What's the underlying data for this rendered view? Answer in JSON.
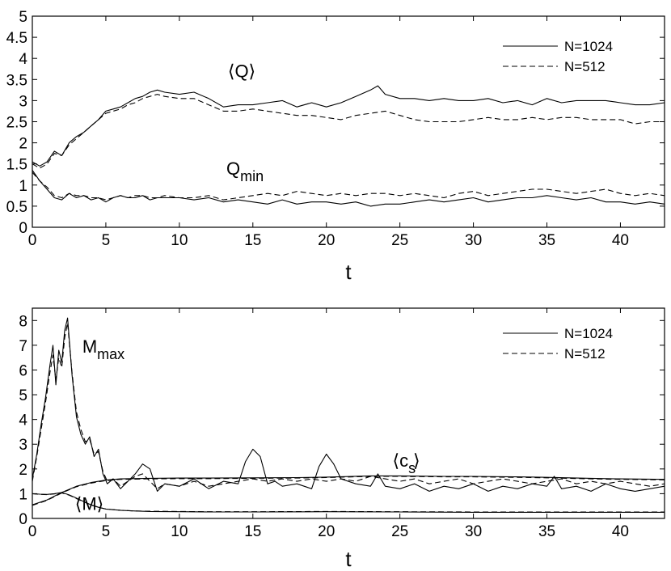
{
  "chart_data": [
    {
      "type": "line",
      "xlabel": "t",
      "ylabel": "",
      "xlim": [
        0,
        43
      ],
      "ylim": [
        0,
        5
      ],
      "xticks": [
        0,
        5,
        10,
        15,
        20,
        25,
        30,
        35,
        40
      ],
      "yticks": [
        0,
        0.5,
        1,
        1.5,
        2,
        2.5,
        3,
        3.5,
        4,
        4.5,
        5
      ],
      "legend": {
        "position": "top-right",
        "entries": [
          {
            "label": "N=1024",
            "style": "solid"
          },
          {
            "label": "N=512",
            "style": "dashed"
          }
        ]
      },
      "annotations": [
        {
          "text": "⟨Q⟩",
          "sub": "",
          "x": 13.3,
          "y": 3.55
        },
        {
          "text": "Q",
          "sub": "min",
          "x": 13.2,
          "y": 1.25
        }
      ],
      "series": [
        {
          "name": "⟨Q⟩",
          "group": "N=1024",
          "style": "solid",
          "x": [
            0,
            0.5,
            1,
            1.5,
            2,
            2.5,
            3,
            3.5,
            4,
            4.5,
            5,
            5.5,
            6,
            6.5,
            7,
            7.5,
            8,
            8.5,
            9,
            10,
            11,
            12,
            13,
            14,
            15,
            16,
            17,
            18,
            19,
            20,
            21,
            22,
            23,
            23.5,
            24,
            25,
            26,
            27,
            28,
            29,
            30,
            31,
            32,
            33,
            34,
            35,
            36,
            37,
            38,
            39,
            40,
            41,
            42,
            43
          ],
          "y": [
            1.55,
            1.45,
            1.55,
            1.8,
            1.7,
            2.0,
            2.15,
            2.25,
            2.4,
            2.55,
            2.75,
            2.8,
            2.85,
            2.95,
            3.05,
            3.1,
            3.2,
            3.25,
            3.2,
            3.15,
            3.2,
            3.05,
            2.85,
            2.9,
            2.9,
            2.95,
            3.0,
            2.85,
            2.95,
            2.85,
            2.95,
            3.1,
            3.25,
            3.35,
            3.15,
            3.05,
            3.05,
            3.0,
            3.05,
            3.0,
            3.0,
            3.05,
            2.95,
            3.0,
            2.9,
            3.05,
            2.95,
            3.0,
            3.0,
            3.0,
            2.95,
            2.9,
            2.9,
            2.95
          ]
        },
        {
          "name": "⟨Q⟩",
          "group": "N=512",
          "style": "dashed",
          "x": [
            0,
            0.5,
            1,
            1.5,
            2,
            2.5,
            3,
            3.5,
            4,
            4.5,
            5,
            5.5,
            6,
            6.5,
            7,
            7.5,
            8,
            8.5,
            9,
            10,
            11,
            12,
            13,
            14,
            15,
            16,
            17,
            18,
            19,
            20,
            21,
            22,
            23,
            24,
            25,
            26,
            27,
            28,
            29,
            30,
            31,
            32,
            33,
            34,
            35,
            36,
            37,
            38,
            39,
            40,
            41,
            42,
            43
          ],
          "y": [
            1.5,
            1.4,
            1.5,
            1.75,
            1.7,
            1.95,
            2.1,
            2.25,
            2.4,
            2.55,
            2.7,
            2.75,
            2.8,
            2.9,
            2.95,
            3.05,
            3.1,
            3.15,
            3.1,
            3.05,
            3.05,
            2.9,
            2.75,
            2.75,
            2.8,
            2.75,
            2.7,
            2.65,
            2.65,
            2.6,
            2.55,
            2.65,
            2.7,
            2.75,
            2.65,
            2.55,
            2.5,
            2.5,
            2.5,
            2.55,
            2.6,
            2.55,
            2.55,
            2.6,
            2.55,
            2.6,
            2.6,
            2.55,
            2.55,
            2.55,
            2.45,
            2.5,
            2.5
          ]
        },
        {
          "name": "Q_min",
          "group": "N=1024",
          "style": "solid",
          "x": [
            0,
            0.5,
            1,
            1.5,
            2,
            2.5,
            3,
            3.5,
            4,
            4.5,
            5,
            5.5,
            6,
            6.5,
            7,
            7.5,
            8,
            8.5,
            9,
            10,
            11,
            12,
            13,
            14,
            15,
            16,
            17,
            18,
            19,
            20,
            21,
            22,
            23,
            24,
            25,
            26,
            27,
            28,
            29,
            30,
            31,
            32,
            33,
            34,
            35,
            36,
            37,
            38,
            39,
            40,
            41,
            42,
            43
          ],
          "y": [
            1.35,
            1.1,
            0.9,
            0.7,
            0.65,
            0.8,
            0.7,
            0.75,
            0.65,
            0.7,
            0.6,
            0.7,
            0.75,
            0.7,
            0.7,
            0.75,
            0.65,
            0.7,
            0.7,
            0.7,
            0.65,
            0.7,
            0.6,
            0.65,
            0.6,
            0.55,
            0.65,
            0.55,
            0.6,
            0.6,
            0.55,
            0.6,
            0.5,
            0.55,
            0.55,
            0.6,
            0.65,
            0.6,
            0.65,
            0.7,
            0.6,
            0.65,
            0.7,
            0.7,
            0.75,
            0.7,
            0.65,
            0.7,
            0.6,
            0.6,
            0.55,
            0.6,
            0.55
          ]
        },
        {
          "name": "Q_min",
          "group": "N=512",
          "style": "dashed",
          "x": [
            0,
            0.5,
            1,
            1.5,
            2,
            2.5,
            3,
            3.5,
            4,
            4.5,
            5,
            5.5,
            6,
            6.5,
            7,
            7.5,
            8,
            8.5,
            9,
            10,
            11,
            12,
            13,
            14,
            15,
            16,
            17,
            18,
            19,
            20,
            21,
            22,
            23,
            24,
            25,
            26,
            27,
            28,
            29,
            30,
            31,
            32,
            33,
            34,
            35,
            36,
            37,
            38,
            39,
            40,
            41,
            42,
            43
          ],
          "y": [
            1.3,
            1.1,
            0.95,
            0.75,
            0.7,
            0.8,
            0.75,
            0.75,
            0.7,
            0.7,
            0.65,
            0.7,
            0.75,
            0.7,
            0.75,
            0.75,
            0.7,
            0.7,
            0.75,
            0.7,
            0.7,
            0.75,
            0.65,
            0.7,
            0.75,
            0.8,
            0.75,
            0.85,
            0.8,
            0.75,
            0.8,
            0.75,
            0.8,
            0.8,
            0.75,
            0.8,
            0.75,
            0.7,
            0.8,
            0.85,
            0.75,
            0.8,
            0.85,
            0.9,
            0.9,
            0.85,
            0.8,
            0.85,
            0.9,
            0.8,
            0.75,
            0.8,
            0.75
          ]
        }
      ]
    },
    {
      "type": "line",
      "xlabel": "t",
      "ylabel": "",
      "xlim": [
        0,
        43
      ],
      "ylim": [
        0,
        8.5
      ],
      "xticks": [
        0,
        5,
        10,
        15,
        20,
        25,
        30,
        35,
        40
      ],
      "yticks": [
        0,
        1,
        2,
        3,
        4,
        5,
        6,
        7,
        8
      ],
      "legend": {
        "position": "top-right",
        "entries": [
          {
            "label": "N=1024",
            "style": "solid"
          },
          {
            "label": "N=512",
            "style": "dashed"
          }
        ]
      },
      "annotations": [
        {
          "text": "M",
          "sub": "max",
          "x": 3.4,
          "y": 6.7
        },
        {
          "text": "⟨c",
          "sub": "s",
          "x": 24.5,
          "y": 2.1
        },
        {
          "text": "⟩",
          "sub": "",
          "x": 25.9,
          "y": 2.1
        },
        {
          "text": "⟨M⟩",
          "sub": "",
          "x": 2.9,
          "y": 0.35
        }
      ],
      "series": [
        {
          "name": "M_max",
          "group": "N=1024",
          "style": "solid",
          "x": [
            0,
            0.3,
            0.6,
            0.9,
            1.2,
            1.4,
            1.6,
            1.8,
            2.0,
            2.2,
            2.4,
            2.7,
            3.0,
            3.3,
            3.6,
            3.9,
            4.2,
            4.5,
            4.8,
            5.1,
            5.5,
            6,
            6.5,
            7,
            7.5,
            8,
            8.5,
            9,
            10,
            11,
            12,
            13,
            14,
            14.5,
            15,
            15.5,
            16,
            16.5,
            17,
            18,
            19,
            19.5,
            20,
            20.5,
            21,
            22,
            23,
            23.5,
            24,
            25,
            26,
            27,
            28,
            29,
            30,
            31,
            32,
            33,
            34,
            35,
            35.5,
            36,
            37,
            38,
            39,
            40,
            41,
            42,
            43
          ],
          "y": [
            1.6,
            2.6,
            3.8,
            4.9,
            6.2,
            7.0,
            5.4,
            6.8,
            6.3,
            7.6,
            8.1,
            5.8,
            4.1,
            3.4,
            3.0,
            3.3,
            2.5,
            2.8,
            1.8,
            1.4,
            1.6,
            1.2,
            1.5,
            1.8,
            2.2,
            2.0,
            1.1,
            1.4,
            1.3,
            1.6,
            1.2,
            1.5,
            1.4,
            2.3,
            2.8,
            2.5,
            1.4,
            1.5,
            1.3,
            1.4,
            1.2,
            2.1,
            2.6,
            2.2,
            1.6,
            1.4,
            1.3,
            1.8,
            1.3,
            1.2,
            1.4,
            1.1,
            1.3,
            1.2,
            1.4,
            1.1,
            1.3,
            1.2,
            1.4,
            1.3,
            1.7,
            1.2,
            1.3,
            1.1,
            1.4,
            1.2,
            1.1,
            1.2,
            1.3
          ]
        },
        {
          "name": "M_max",
          "group": "N=512",
          "style": "dashed",
          "x": [
            0,
            0.3,
            0.6,
            0.9,
            1.2,
            1.4,
            1.6,
            1.8,
            2.0,
            2.2,
            2.4,
            2.7,
            3.0,
            3.3,
            3.6,
            3.9,
            4.2,
            4.5,
            4.8,
            5.1,
            5.5,
            6,
            6.5,
            7,
            7.5,
            8,
            8.5,
            9,
            10,
            11,
            12,
            13,
            14,
            15,
            16,
            17,
            18,
            19,
            20,
            21,
            22,
            23,
            24,
            25,
            26,
            27,
            28,
            29,
            30,
            31,
            32,
            33,
            34,
            35,
            36,
            37,
            38,
            39,
            40,
            41,
            42,
            43
          ],
          "y": [
            1.5,
            2.5,
            3.6,
            4.7,
            5.9,
            6.6,
            5.6,
            6.5,
            6.1,
            7.3,
            7.9,
            5.9,
            4.3,
            3.6,
            3.1,
            3.2,
            2.6,
            2.7,
            1.9,
            1.5,
            1.6,
            1.3,
            1.5,
            1.7,
            1.8,
            1.5,
            1.2,
            1.4,
            1.3,
            1.5,
            1.3,
            1.4,
            1.5,
            1.6,
            1.5,
            1.6,
            1.5,
            1.6,
            1.5,
            1.6,
            1.5,
            1.7,
            1.6,
            1.5,
            1.6,
            1.4,
            1.5,
            1.6,
            1.4,
            1.5,
            1.6,
            1.5,
            1.4,
            1.5,
            1.6,
            1.4,
            1.5,
            1.4,
            1.5,
            1.4,
            1.3,
            1.4
          ]
        },
        {
          "name": "⟨c_s⟩",
          "group": "N=1024",
          "style": "solid",
          "x": [
            0,
            1,
            2,
            3,
            4,
            5,
            6,
            8,
            10,
            12,
            15,
            18,
            20,
            23,
            25,
            28,
            30,
            33,
            35,
            38,
            40,
            43
          ],
          "y": [
            0.55,
            0.75,
            1.05,
            1.3,
            1.45,
            1.55,
            1.6,
            1.62,
            1.63,
            1.63,
            1.64,
            1.65,
            1.67,
            1.72,
            1.72,
            1.7,
            1.7,
            1.68,
            1.66,
            1.62,
            1.6,
            1.58
          ]
        },
        {
          "name": "⟨c_s⟩",
          "group": "N=512",
          "style": "dashed",
          "x": [
            0,
            1,
            2,
            3,
            4,
            5,
            6,
            8,
            10,
            12,
            15,
            18,
            20,
            23,
            25,
            28,
            30,
            33,
            35,
            38,
            40,
            43
          ],
          "y": [
            0.53,
            0.73,
            1.03,
            1.28,
            1.43,
            1.53,
            1.58,
            1.6,
            1.61,
            1.61,
            1.62,
            1.63,
            1.65,
            1.7,
            1.7,
            1.68,
            1.68,
            1.66,
            1.64,
            1.6,
            1.58,
            1.56
          ]
        },
        {
          "name": "⟨M⟩",
          "group": "N=1024",
          "style": "solid",
          "x": [
            0,
            0.5,
            1,
            1.5,
            2,
            2.5,
            3,
            3.5,
            4,
            4.5,
            5,
            6,
            7,
            8,
            10,
            12,
            15,
            20,
            25,
            30,
            35,
            40,
            43
          ],
          "y": [
            1.0,
            0.98,
            0.97,
            1.0,
            1.05,
            0.95,
            0.82,
            0.68,
            0.55,
            0.45,
            0.38,
            0.33,
            0.3,
            0.28,
            0.27,
            0.26,
            0.26,
            0.27,
            0.26,
            0.25,
            0.25,
            0.25,
            0.25
          ]
        },
        {
          "name": "⟨M⟩",
          "group": "N=512",
          "style": "dashed",
          "x": [
            0,
            0.5,
            1,
            1.5,
            2,
            2.5,
            3,
            3.5,
            4,
            4.5,
            5,
            6,
            7,
            8,
            10,
            12,
            15,
            20,
            25,
            30,
            35,
            40,
            43
          ],
          "y": [
            1.0,
            0.97,
            0.96,
            0.99,
            1.03,
            0.94,
            0.8,
            0.67,
            0.54,
            0.45,
            0.38,
            0.33,
            0.3,
            0.29,
            0.28,
            0.27,
            0.27,
            0.28,
            0.27,
            0.26,
            0.26,
            0.26,
            0.26
          ]
        }
      ]
    }
  ]
}
